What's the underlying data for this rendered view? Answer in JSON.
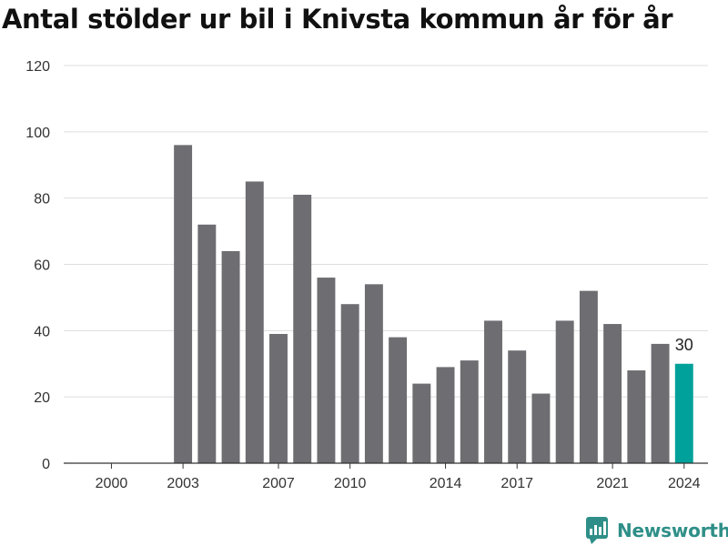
{
  "title": "Antal stölder ur bil i Knivsta kommun år för år",
  "brand": {
    "name": "Newsworthy",
    "color": "#2f8f88"
  },
  "colors": {
    "bar": "#6d6d72",
    "highlight": "#00a19a",
    "grid": "#dddddd",
    "axis": "#333333"
  },
  "chart_data": {
    "type": "bar",
    "title": "Antal stölder ur bil i Knivsta kommun år för år",
    "xlabel": "",
    "ylabel": "",
    "ylim": [
      0,
      120
    ],
    "yticks": [
      0,
      20,
      40,
      60,
      80,
      100,
      120
    ],
    "xlim": [
      1998,
      2025
    ],
    "xtick_labels": [
      "2000",
      "2003",
      "2007",
      "2010",
      "2014",
      "2017",
      "2021",
      "2024"
    ],
    "categories": [
      2003,
      2004,
      2005,
      2006,
      2007,
      2008,
      2009,
      2010,
      2011,
      2012,
      2013,
      2014,
      2015,
      2016,
      2017,
      2018,
      2019,
      2020,
      2021,
      2022,
      2023,
      2024
    ],
    "values": [
      96,
      72,
      64,
      85,
      39,
      81,
      56,
      48,
      54,
      38,
      24,
      29,
      31,
      43,
      34,
      21,
      43,
      52,
      42,
      28,
      36,
      30
    ],
    "highlight": {
      "category": 2024,
      "value": 30,
      "label": "30"
    },
    "grid": true,
    "legend": "none"
  }
}
